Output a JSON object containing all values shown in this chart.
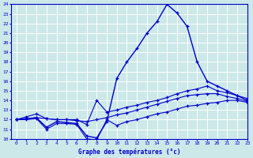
{
  "xlabel": "Graphe des températures (°c)",
  "bg_color": "#cce8e8",
  "grid_color": "#ffffff",
  "line_color": "#0000cc",
  "x_hours": [
    0,
    1,
    2,
    3,
    4,
    5,
    6,
    7,
    8,
    9,
    10,
    11,
    12,
    13,
    14,
    15,
    16,
    17,
    18,
    19,
    20,
    21,
    22,
    23
  ],
  "series_peak": [
    12.0,
    12.1,
    12.2,
    11.2,
    11.8,
    11.7,
    11.6,
    10.3,
    10.1,
    11.8,
    16.3,
    18.0,
    19.4,
    21.0,
    22.2,
    24.0,
    23.1,
    21.7,
    18.0,
    16.0,
    15.5,
    15.0,
    14.5,
    14.0
  ],
  "series_upper": [
    12.0,
    12.3,
    12.6,
    12.1,
    12.0,
    12.0,
    12.0,
    11.5,
    14.0,
    12.8,
    13.0,
    13.3,
    13.5,
    13.8,
    14.0,
    14.3,
    14.7,
    15.0,
    15.2,
    15.5,
    15.0,
    14.8,
    14.5,
    14.2
  ],
  "series_mid": [
    12.0,
    12.1,
    12.2,
    12.1,
    12.0,
    12.0,
    11.9,
    11.8,
    12.0,
    12.2,
    12.5,
    12.7,
    13.0,
    13.3,
    13.6,
    13.9,
    14.2,
    14.5,
    14.6,
    14.7,
    14.7,
    14.4,
    14.2,
    13.9
  ],
  "series_low": [
    12.0,
    12.0,
    12.1,
    11.0,
    11.6,
    11.6,
    11.5,
    10.0,
    9.9,
    12.0,
    11.4,
    11.8,
    12.0,
    12.3,
    12.6,
    12.8,
    13.1,
    13.4,
    13.5,
    13.7,
    13.8,
    14.0,
    14.0,
    13.8
  ],
  "ylim": [
    10,
    24
  ],
  "xlim": [
    -0.5,
    23
  ],
  "yticks": [
    10,
    11,
    12,
    13,
    14,
    15,
    16,
    17,
    18,
    19,
    20,
    21,
    22,
    23,
    24
  ],
  "xticks": [
    0,
    1,
    2,
    3,
    4,
    5,
    6,
    7,
    8,
    9,
    10,
    11,
    12,
    13,
    14,
    15,
    16,
    17,
    18,
    19,
    20,
    21,
    22,
    23
  ]
}
